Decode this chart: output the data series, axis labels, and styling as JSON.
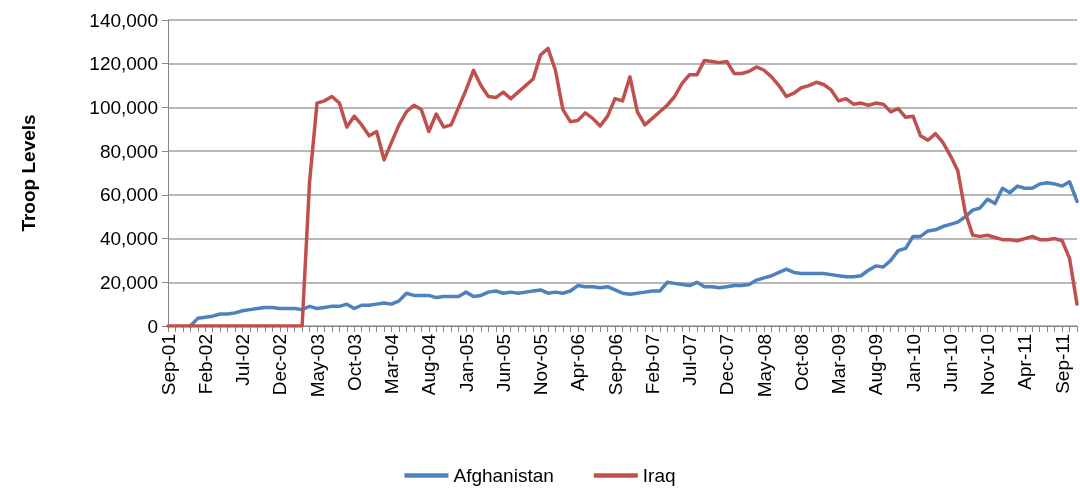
{
  "chart_data": {
    "type": "line",
    "ylabel": "Troop Levels",
    "categories": [
      "Sep-01",
      null,
      null,
      null,
      null,
      "Feb-02",
      null,
      null,
      null,
      null,
      "Jul-02",
      null,
      null,
      null,
      null,
      "Dec-02",
      null,
      null,
      null,
      null,
      "May-03",
      null,
      null,
      null,
      null,
      "Oct-03",
      null,
      null,
      null,
      null,
      "Mar-04",
      null,
      null,
      null,
      null,
      "Aug-04",
      null,
      null,
      null,
      null,
      "Jan-05",
      null,
      null,
      null,
      null,
      "Jun-05",
      null,
      null,
      null,
      null,
      "Nov-05",
      null,
      null,
      null,
      null,
      "Apr-06",
      null,
      null,
      null,
      null,
      "Sep-06",
      null,
      null,
      null,
      null,
      "Feb-07",
      null,
      null,
      null,
      null,
      "Jul-07",
      null,
      null,
      null,
      null,
      "Dec-07",
      null,
      null,
      null,
      null,
      "May-08",
      null,
      null,
      null,
      null,
      "Oct-08",
      null,
      null,
      null,
      null,
      "Mar-09",
      null,
      null,
      null,
      null,
      "Aug-09",
      null,
      null,
      null,
      null,
      "Jan-10",
      null,
      null,
      null,
      null,
      "Jun-10",
      null,
      null,
      null,
      null,
      "Nov-10",
      null,
      null,
      null,
      null,
      "Apr-11",
      null,
      null,
      null,
      null,
      "Sep-11",
      null,
      null
    ],
    "series": [
      {
        "name": "Afghanistan",
        "color": "#4f81bd",
        "values": [
          null,
          null,
          null,
          0,
          3500,
          4000,
          4500,
          5500,
          5500,
          6000,
          7000,
          7500,
          8000,
          8500,
          8500,
          8000,
          8000,
          8000,
          7500,
          9000,
          8000,
          8500,
          9000,
          9000,
          10000,
          8000,
          9500,
          9500,
          10000,
          10500,
          10000,
          11500,
          15000,
          14000,
          14000,
          14000,
          13000,
          13500,
          13500,
          13500,
          15500,
          13500,
          14000,
          15500,
          16000,
          15000,
          15500,
          15000,
          15500,
          16000,
          16500,
          15000,
          15500,
          15000,
          16000,
          18500,
          18000,
          18000,
          17500,
          18000,
          16500,
          15000,
          14500,
          15000,
          15500,
          16000,
          16000,
          20000,
          19500,
          19000,
          18500,
          20000,
          18000,
          18000,
          17500,
          18000,
          18500,
          18500,
          19000,
          21000,
          22000,
          23000,
          24500,
          26000,
          24500,
          24000,
          24000,
          24000,
          24000,
          23500,
          23000,
          22500,
          22500,
          23000,
          25500,
          27500,
          27000,
          30000,
          34500,
          35500,
          41000,
          41000,
          43500,
          44000,
          45500,
          46500,
          47500,
          50000,
          53000,
          54000,
          58000,
          56000,
          63000,
          61000,
          64000,
          63000,
          63000,
          65000,
          65500,
          65000,
          64000,
          66000,
          57000
        ]
      },
      {
        "name": "Iraq",
        "color": "#c0504d",
        "values": [
          0,
          0,
          0,
          0,
          0,
          0,
          0,
          0,
          0,
          0,
          0,
          0,
          0,
          0,
          0,
          0,
          0,
          0,
          0,
          66000,
          102000,
          103000,
          105000,
          102000,
          91000,
          96000,
          92000,
          87000,
          89000,
          76000,
          84000,
          92000,
          98000,
          101000,
          99000,
          89000,
          97000,
          91000,
          92000,
          100000,
          108000,
          117000,
          110000,
          105000,
          104500,
          107000,
          104000,
          107000,
          110000,
          113000,
          124000,
          127000,
          117000,
          99000,
          93500,
          94000,
          97500,
          95000,
          91500,
          96000,
          104000,
          103000,
          114000,
          98000,
          92000,
          95000,
          98000,
          101000,
          105000,
          111000,
          115000,
          115000,
          121500,
          121000,
          120500,
          121000,
          115500,
          115500,
          116500,
          118500,
          117000,
          114000,
          110000,
          105000,
          106500,
          109000,
          110000,
          111500,
          110500,
          108000,
          103000,
          104000,
          101500,
          102000,
          101000,
          102000,
          101500,
          98000,
          99500,
          95500,
          96000,
          87000,
          85000,
          88000,
          84000,
          78000,
          71000,
          52000,
          41500,
          41000,
          41500,
          40500,
          39500,
          39500,
          39000,
          40000,
          41000,
          39500,
          39500,
          40000,
          39000,
          31000,
          10000
        ]
      }
    ],
    "ylim": [
      0,
      140000
    ],
    "yticks": [
      0,
      {
        "value": 20000,
        "label": "20,000"
      },
      {
        "value": 40000,
        "label": "40,000"
      },
      {
        "value": 60000,
        "label": "60,000"
      },
      {
        "value": 80000,
        "label": "80,000"
      },
      {
        "value": 100000,
        "label": "100,000"
      },
      {
        "value": 120000,
        "label": "120,000"
      },
      {
        "value": 140000,
        "label": "140,000"
      }
    ],
    "grid": "y",
    "legend": "bottom",
    "marker": "none",
    "line_style": "solid"
  }
}
